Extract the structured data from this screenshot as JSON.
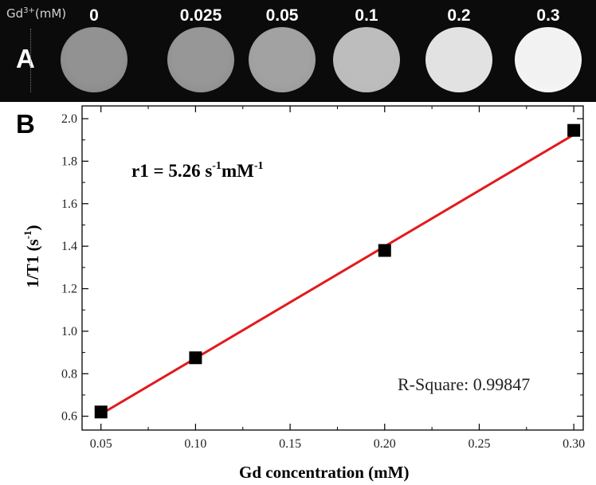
{
  "panel_a": {
    "label": "A",
    "axis_prefix": "Gd",
    "axis_sup": "3+",
    "axis_unit": "(mM)",
    "samples": [
      {
        "conc": "0",
        "brightness": 0.35
      },
      {
        "conc": "0.025",
        "brightness": 0.38
      },
      {
        "conc": "0.05",
        "brightness": 0.45
      },
      {
        "conc": "0.1",
        "brightness": 0.62
      },
      {
        "conc": "0.2",
        "brightness": 0.85
      },
      {
        "conc": "0.3",
        "brightness": 0.95
      }
    ]
  },
  "panel_b": {
    "label": "B",
    "annotation_r1_prefix": "r1 = 5.26 s",
    "annotation_r1_sup1": "-1",
    "annotation_r1_mid": "mM",
    "annotation_r1_sup2": "-1",
    "annotation_rsquare": "R-Square: 0.99847"
  },
  "chart_data": {
    "type": "scatter",
    "xlabel": "Gd concentration (mM)",
    "ylabel_prefix": "1/T1 (s",
    "ylabel_sup": "-1",
    "ylabel_suffix": ")",
    "xlim": [
      0.04,
      0.305
    ],
    "ylim": [
      0.535,
      2.06
    ],
    "xticks": [
      0.05,
      0.1,
      0.15,
      0.2,
      0.25,
      0.3
    ],
    "xtick_labels": [
      "0.05",
      "0.10",
      "0.15",
      "0.20",
      "0.25",
      "0.30"
    ],
    "yticks": [
      0.6,
      0.8,
      1.0,
      1.2,
      1.4,
      1.6,
      1.8,
      2.0
    ],
    "ytick_labels": [
      "0.6",
      "0.8",
      "1.0",
      "1.2",
      "1.4",
      "1.6",
      "1.8",
      "2.0"
    ],
    "grid": false,
    "series": [
      {
        "x": [
          0.05,
          0.1,
          0.2,
          0.3
        ],
        "y": [
          0.62,
          0.875,
          1.38,
          1.945
        ],
        "color": "#000000",
        "marker": "square"
      }
    ],
    "fit_line": {
      "x": [
        0.05,
        0.3
      ],
      "y": [
        0.61,
        1.925
      ],
      "color": "#e31a1c"
    }
  }
}
